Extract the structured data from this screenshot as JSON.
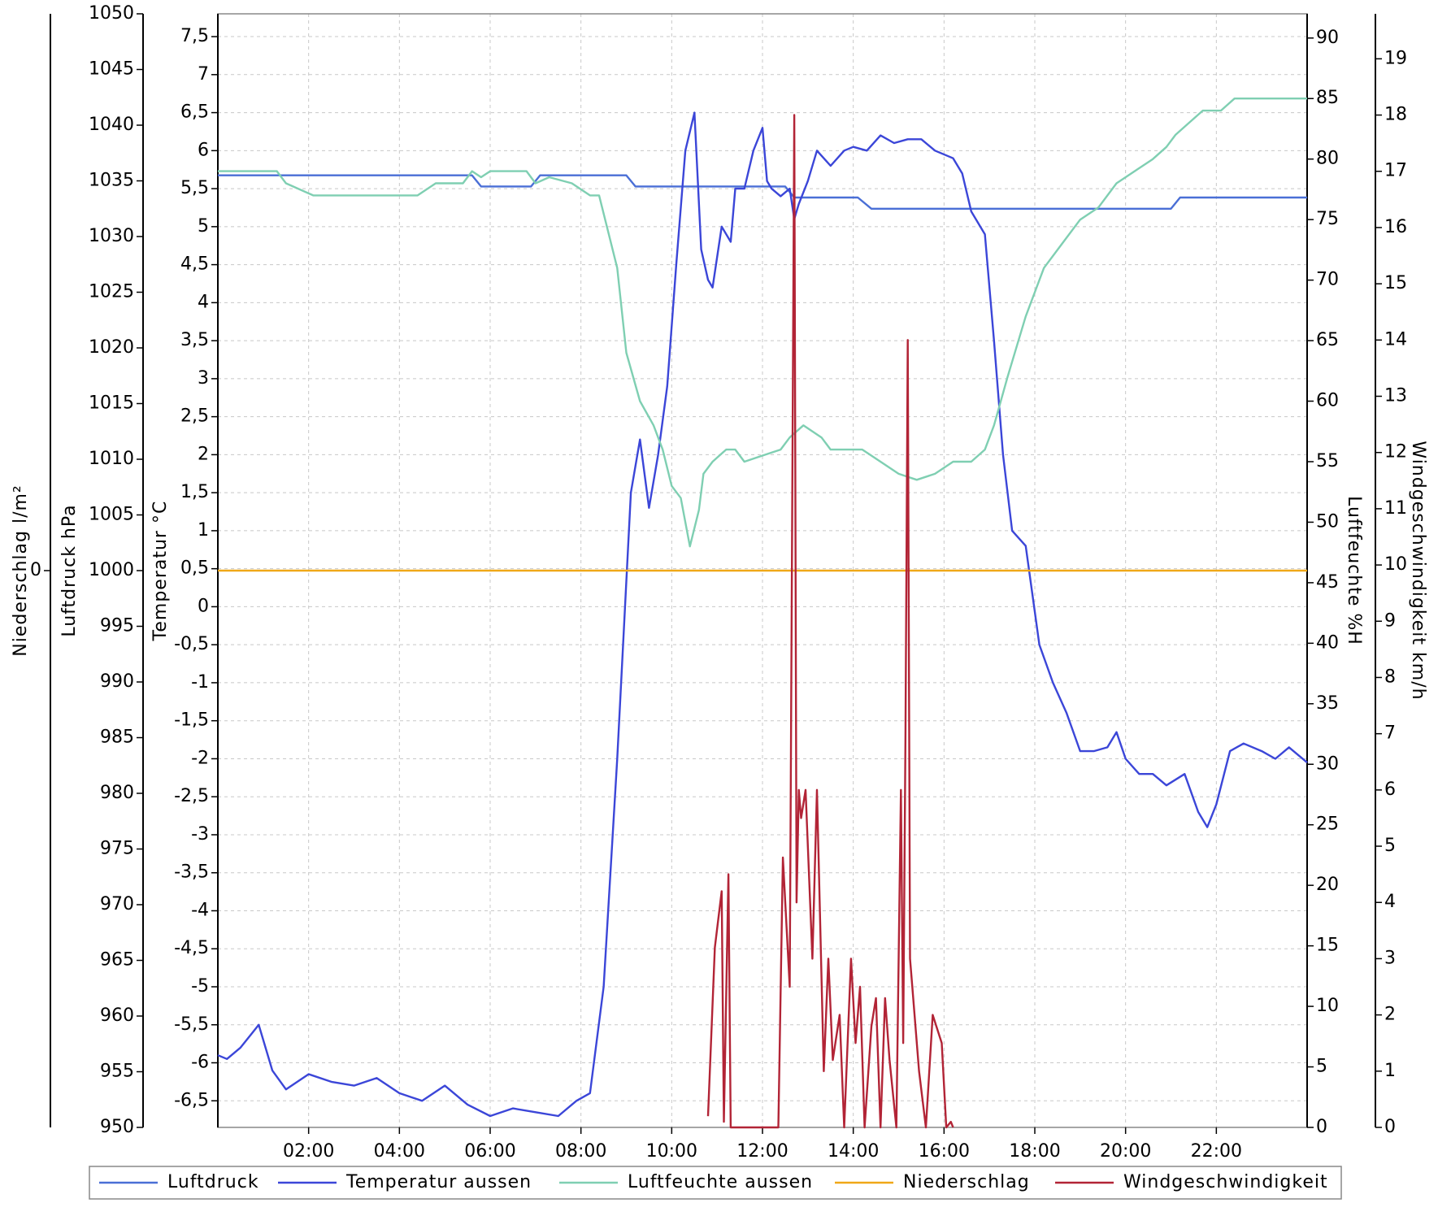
{
  "chart_data": {
    "type": "line",
    "x_unit": "hours",
    "x_range": [
      0,
      24
    ],
    "x_ticks": [
      {
        "value": 2,
        "label": "02:00"
      },
      {
        "value": 4,
        "label": "04:00"
      },
      {
        "value": 6,
        "label": "06:00"
      },
      {
        "value": 8,
        "label": "08:00"
      },
      {
        "value": 10,
        "label": "10:00"
      },
      {
        "value": 12,
        "label": "12:00"
      },
      {
        "value": 14,
        "label": "14:00"
      },
      {
        "value": 16,
        "label": "16:00"
      },
      {
        "value": 18,
        "label": "18:00"
      },
      {
        "value": 20,
        "label": "20:00"
      },
      {
        "value": 22,
        "label": "22:00"
      }
    ],
    "grid": true,
    "legend_position": "bottom",
    "axes": {
      "niederschlag": {
        "label": "Niederschlag  l/m²",
        "range": [
          -1,
          1
        ],
        "ticks": [
          {
            "value": 0,
            "label": "0"
          }
        ]
      },
      "luftdruck": {
        "label": "Luftdruck  hPa",
        "range": [
          950,
          1050
        ],
        "ticks": [
          {
            "value": 950,
            "label": "950"
          },
          {
            "value": 955,
            "label": "955"
          },
          {
            "value": 960,
            "label": "960"
          },
          {
            "value": 965,
            "label": "965"
          },
          {
            "value": 970,
            "label": "970"
          },
          {
            "value": 975,
            "label": "975"
          },
          {
            "value": 980,
            "label": "980"
          },
          {
            "value": 985,
            "label": "985"
          },
          {
            "value": 990,
            "label": "990"
          },
          {
            "value": 995,
            "label": "995"
          },
          {
            "value": 1000,
            "label": "1000"
          },
          {
            "value": 1005,
            "label": "1005"
          },
          {
            "value": 1010,
            "label": "1010"
          },
          {
            "value": 1015,
            "label": "1015"
          },
          {
            "value": 1020,
            "label": "1020"
          },
          {
            "value": 1025,
            "label": "1025"
          },
          {
            "value": 1030,
            "label": "1030"
          },
          {
            "value": 1035,
            "label": "1035"
          },
          {
            "value": 1040,
            "label": "1040"
          },
          {
            "value": 1045,
            "label": "1045"
          },
          {
            "value": 1050,
            "label": "1050"
          }
        ]
      },
      "temperatur": {
        "label": "Temperatur  °C",
        "range": [
          -6.85,
          7.8
        ],
        "ticks": [
          {
            "value": -6.5,
            "label": "-6,5"
          },
          {
            "value": -6,
            "label": "-6"
          },
          {
            "value": -5.5,
            "label": "-5,5"
          },
          {
            "value": -5,
            "label": "-5"
          },
          {
            "value": -4.5,
            "label": "-4,5"
          },
          {
            "value": -4,
            "label": "-4"
          },
          {
            "value": -3.5,
            "label": "-3,5"
          },
          {
            "value": -3,
            "label": "-3"
          },
          {
            "value": -2.5,
            "label": "-2,5"
          },
          {
            "value": -2,
            "label": "-2"
          },
          {
            "value": -1.5,
            "label": "-1,5"
          },
          {
            "value": -1,
            "label": "-1"
          },
          {
            "value": -0.5,
            "label": "-0,5"
          },
          {
            "value": 0,
            "label": "0"
          },
          {
            "value": 0.5,
            "label": "0,5"
          },
          {
            "value": 1,
            "label": "1"
          },
          {
            "value": 1.5,
            "label": "1,5"
          },
          {
            "value": 2,
            "label": "2"
          },
          {
            "value": 2.5,
            "label": "2,5"
          },
          {
            "value": 3,
            "label": "3"
          },
          {
            "value": 3.5,
            "label": "3,5"
          },
          {
            "value": 4,
            "label": "4"
          },
          {
            "value": 4.5,
            "label": "4,5"
          },
          {
            "value": 5,
            "label": "5"
          },
          {
            "value": 5.5,
            "label": "5,5"
          },
          {
            "value": 6,
            "label": "6"
          },
          {
            "value": 6.5,
            "label": "6,5"
          },
          {
            "value": 7,
            "label": "7"
          },
          {
            "value": 7.5,
            "label": "7,5"
          }
        ]
      },
      "luftfeuchte": {
        "label": "Luftfeuchte  %H",
        "range": [
          0,
          92
        ],
        "ticks": [
          {
            "value": 0,
            "label": "0"
          },
          {
            "value": 5,
            "label": "5"
          },
          {
            "value": 10,
            "label": "10"
          },
          {
            "value": 15,
            "label": "15"
          },
          {
            "value": 20,
            "label": "20"
          },
          {
            "value": 25,
            "label": "25"
          },
          {
            "value": 30,
            "label": "30"
          },
          {
            "value": 35,
            "label": "35"
          },
          {
            "value": 40,
            "label": "40"
          },
          {
            "value": 45,
            "label": "45"
          },
          {
            "value": 50,
            "label": "50"
          },
          {
            "value": 55,
            "label": "55"
          },
          {
            "value": 60,
            "label": "60"
          },
          {
            "value": 65,
            "label": "65"
          },
          {
            "value": 70,
            "label": "70"
          },
          {
            "value": 75,
            "label": "75"
          },
          {
            "value": 80,
            "label": "80"
          },
          {
            "value": 85,
            "label": "85"
          },
          {
            "value": 90,
            "label": "90"
          }
        ]
      },
      "wind": {
        "label": "Windgeschwindigkeit  km/h",
        "range": [
          0,
          19.8
        ],
        "ticks": [
          {
            "value": 0,
            "label": "0"
          },
          {
            "value": 1,
            "label": "1"
          },
          {
            "value": 2,
            "label": "2"
          },
          {
            "value": 3,
            "label": "3"
          },
          {
            "value": 4,
            "label": "4"
          },
          {
            "value": 5,
            "label": "5"
          },
          {
            "value": 6,
            "label": "6"
          },
          {
            "value": 7,
            "label": "7"
          },
          {
            "value": 8,
            "label": "8"
          },
          {
            "value": 9,
            "label": "9"
          },
          {
            "value": 10,
            "label": "10"
          },
          {
            "value": 11,
            "label": "11"
          },
          {
            "value": 12,
            "label": "12"
          },
          {
            "value": 13,
            "label": "13"
          },
          {
            "value": 14,
            "label": "14"
          },
          {
            "value": 15,
            "label": "15"
          },
          {
            "value": 16,
            "label": "16"
          },
          {
            "value": 17,
            "label": "17"
          },
          {
            "value": 18,
            "label": "18"
          },
          {
            "value": 19,
            "label": "19"
          }
        ]
      }
    },
    "series": [
      {
        "name": "Luftdruck",
        "axis": "luftdruck",
        "color": "#4a6fd6",
        "x": [
          0,
          1.9,
          2.1,
          5.6,
          5.8,
          6.9,
          7.1,
          9.0,
          9.2,
          12.5,
          12.7,
          14.1,
          14.4,
          21.0,
          21.2,
          24
        ],
        "y": [
          1035.5,
          1035.5,
          1035.5,
          1035.5,
          1034.5,
          1034.5,
          1035.5,
          1035.5,
          1034.5,
          1034.5,
          1033.5,
          1033.5,
          1032.5,
          1032.5,
          1033.5,
          1033.5
        ]
      },
      {
        "name": "Temperatur aussen",
        "axis": "temperatur",
        "color": "#3b46d8",
        "x": [
          0,
          0.2,
          0.5,
          0.9,
          1.2,
          1.5,
          2.0,
          2.5,
          3.0,
          3.5,
          4.0,
          4.5,
          5.0,
          5.5,
          6.0,
          6.5,
          7.0,
          7.5,
          7.9,
          8.2,
          8.5,
          8.8,
          9.1,
          9.3,
          9.5,
          9.7,
          9.9,
          10.1,
          10.3,
          10.5,
          10.65,
          10.8,
          10.9,
          11.1,
          11.3,
          11.4,
          11.6,
          11.8,
          12.0,
          12.1,
          12.2,
          12.4,
          12.6,
          12.7,
          12.8,
          13.0,
          13.2,
          13.5,
          13.8,
          14.0,
          14.3,
          14.6,
          14.9,
          15.2,
          15.5,
          15.8,
          16.2,
          16.4,
          16.6,
          16.9,
          17.1,
          17.3,
          17.5,
          17.8,
          18.1,
          18.4,
          18.7,
          19.0,
          19.3,
          19.6,
          19.8,
          20.0,
          20.3,
          20.6,
          20.9,
          21.3,
          21.6,
          21.8,
          22.0,
          22.3,
          22.6,
          23.0,
          23.3,
          23.6,
          24
        ],
        "y": [
          -5.9,
          -5.95,
          -5.8,
          -5.5,
          -6.1,
          -6.35,
          -6.15,
          -6.25,
          -6.3,
          -6.2,
          -6.4,
          -6.5,
          -6.3,
          -6.55,
          -6.7,
          -6.6,
          -6.65,
          -6.7,
          -6.5,
          -6.4,
          -5.0,
          -2.0,
          1.5,
          2.2,
          1.3,
          2.0,
          2.9,
          4.5,
          6.0,
          6.5,
          4.7,
          4.3,
          4.2,
          5.0,
          4.8,
          5.5,
          5.5,
          6.0,
          6.3,
          5.6,
          5.5,
          5.4,
          5.5,
          5.1,
          5.3,
          5.6,
          6.0,
          5.8,
          6.0,
          6.05,
          6.0,
          6.2,
          6.1,
          6.15,
          6.15,
          6.0,
          5.9,
          5.7,
          5.2,
          4.9,
          3.5,
          2.0,
          1.0,
          0.8,
          -0.5,
          -1.0,
          -1.4,
          -1.9,
          -1.9,
          -1.85,
          -1.65,
          -2.0,
          -2.2,
          -2.2,
          -2.35,
          -2.2,
          -2.7,
          -2.9,
          -2.6,
          -1.9,
          -1.8,
          -1.9,
          -2.0,
          -1.85,
          -2.05
        ]
      },
      {
        "name": "Luftfeuchte aussen",
        "axis": "luftfeuchte",
        "color": "#7fcfb2",
        "x": [
          0,
          1.3,
          1.5,
          2.1,
          4.4,
          4.8,
          5.4,
          5.6,
          5.8,
          6.0,
          6.4,
          6.8,
          7.0,
          7.3,
          7.8,
          8.2,
          8.4,
          8.8,
          9.0,
          9.3,
          9.6,
          9.8,
          10.0,
          10.2,
          10.4,
          10.6,
          10.7,
          10.9,
          11.2,
          11.4,
          11.6,
          12.0,
          12.4,
          12.6,
          12.9,
          13.3,
          13.5,
          13.8,
          14.2,
          14.6,
          15.0,
          15.4,
          15.8,
          16.2,
          16.6,
          16.9,
          17.1,
          17.4,
          17.8,
          18.2,
          18.6,
          19.0,
          19.4,
          19.8,
          20.2,
          20.6,
          20.9,
          21.1,
          21.4,
          21.7,
          22.1,
          22.4,
          24
        ],
        "y": [
          79,
          79,
          78,
          77,
          77,
          78,
          78,
          79,
          78.5,
          79,
          79,
          79,
          78,
          78.5,
          78,
          77,
          77,
          71,
          64,
          60,
          58,
          56,
          53,
          52,
          48,
          51,
          54,
          55,
          56,
          56,
          55,
          55.5,
          56,
          57,
          58,
          57,
          56,
          56,
          56,
          55,
          54,
          53.5,
          54,
          55,
          55,
          56,
          58,
          62,
          67,
          71,
          73,
          75,
          76,
          78,
          79,
          80,
          81,
          82,
          83,
          84,
          84,
          85,
          85
        ]
      },
      {
        "name": "Niederschlag",
        "axis": "niederschlag",
        "color": "#f0a818",
        "x": [
          0,
          24
        ],
        "y": [
          0,
          0
        ]
      },
      {
        "name": "Windgeschwindigkeit",
        "axis": "wind",
        "color": "#b22436",
        "x": [
          10.8,
          10.95,
          11.1,
          11.15,
          11.25,
          11.3,
          11.35,
          11.4,
          12.35,
          12.45,
          12.6,
          12.7,
          12.75,
          12.8,
          12.85,
          12.95,
          13.1,
          13.2,
          13.35,
          13.45,
          13.55,
          13.7,
          13.8,
          13.95,
          14.05,
          14.15,
          14.25,
          14.4,
          14.5,
          14.6,
          14.7,
          14.8,
          14.95,
          15.05,
          15.1,
          15.15,
          15.2,
          15.25,
          15.3,
          15.45,
          15.6,
          15.75,
          15.95,
          16.05,
          16.15,
          16.2
        ],
        "y": [
          0.2,
          3.2,
          4.2,
          0.1,
          4.5,
          0,
          0,
          0,
          0,
          4.8,
          2.5,
          18.0,
          4.0,
          6.0,
          5.5,
          6.0,
          3.0,
          6.0,
          1.0,
          3.0,
          1.2,
          2.0,
          0.0,
          3.0,
          1.5,
          2.5,
          0.0,
          1.8,
          2.3,
          0.0,
          2.3,
          1.2,
          0.0,
          6.0,
          1.5,
          7.0,
          14.0,
          3.0,
          2.5,
          1.0,
          0.0,
          2.0,
          1.5,
          0.0,
          0.1,
          0.0
        ]
      }
    ]
  }
}
